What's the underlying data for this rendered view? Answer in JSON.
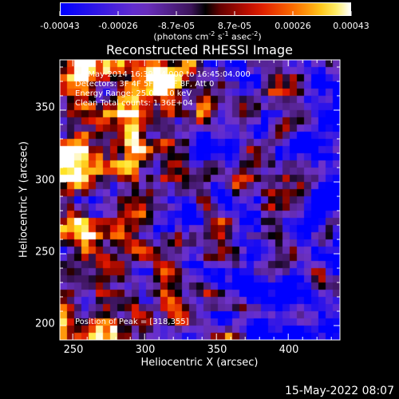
{
  "colorbar": {
    "ticks": [
      "-0.00043",
      "-0.00026",
      "-8.7e-05",
      "8.7e-05",
      "0.00026",
      "0.00043"
    ],
    "units_main": "(photons cm",
    "units_exp1": "-2",
    "units_mid": " s",
    "units_exp2": "-1",
    "units_end": " asec",
    "units_exp3": "-2",
    "units_close": ")"
  },
  "title": "Reconstructed RHESSI Image",
  "annotations": {
    "time": "14-May-2014 16:39:04.000 to 16:45:04.000",
    "detectors": "Detectors: 3F 4F 5F 6F 7F 8F, Att 0",
    "energy": "Energy Range: 25.0-50.0 keV",
    "method": "Clean     Total counts: 1.36E+04",
    "peak": "Position of Peak = [318,355]"
  },
  "axes": {
    "xlabel": "Heliocentric X (arcsec)",
    "ylabel": "Heliocentric Y (arcsec)",
    "xticks": [
      "250",
      "300",
      "350",
      "400"
    ],
    "yticks": [
      "200",
      "250",
      "300",
      "350"
    ],
    "xrange": [
      241,
      436
    ],
    "yrange": [
      190,
      385
    ],
    "xtick_values": [
      250,
      300,
      350,
      400
    ],
    "ytick_values": [
      200,
      250,
      300,
      350
    ]
  },
  "footer": "15-May-2022 08:07",
  "colors": {
    "background": "#000000",
    "foreground": "#ffffff"
  }
}
